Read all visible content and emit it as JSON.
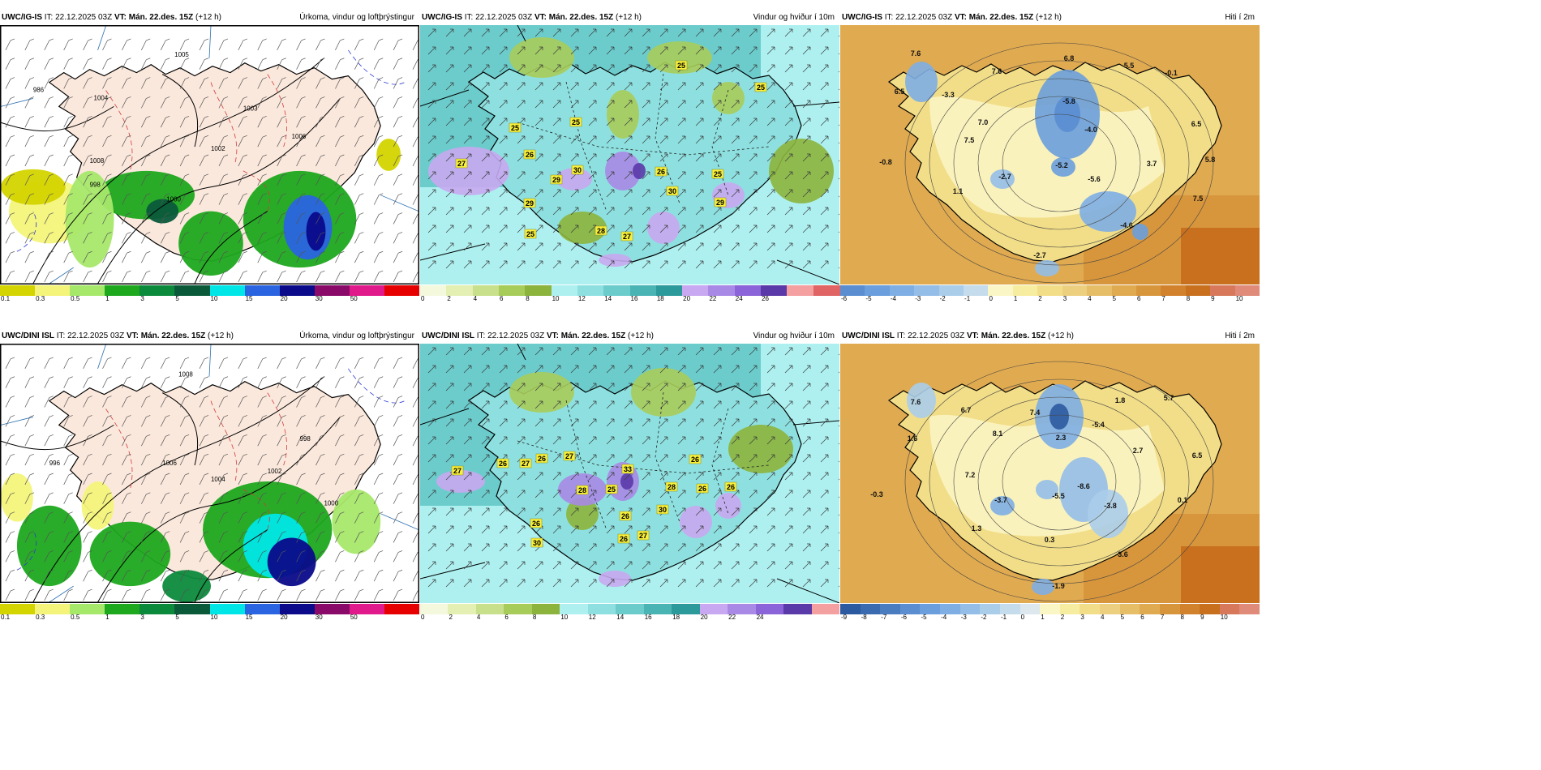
{
  "panels": [
    {
      "id": "ig-precip",
      "model": "UWC/IG-IS",
      "it_label": "IT:",
      "it": "22.12.2025 03Z",
      "vt_label": "VT:",
      "vt": "Mán. 22.des. 15Z",
      "lead": "(+12 h)",
      "title": "Úrkoma, vindur og loftþrýstingur",
      "colorbar": {
        "ticks": [
          "0.1",
          "0.3",
          "0.5",
          "1",
          "3",
          "5",
          "10",
          "15",
          "20",
          "30",
          "50"
        ],
        "colors": [
          "#d4d400",
          "#f4f47a",
          "#a6e86a",
          "#1ea81e",
          "#0c8a3c",
          "#0a5a3a",
          "#00e6e6",
          "#2a64e0",
          "#0a0a8a",
          "#8a0a6a",
          "#e01a8a",
          "#e60000"
        ]
      },
      "contour_labels": [
        "1005",
        "1008",
        "1004",
        "1003",
        "1002",
        "1000",
        "1006",
        "986",
        "998"
      ]
    },
    {
      "id": "ig-wind",
      "model": "UWC/IG-IS",
      "it_label": "IT:",
      "it": "22.12.2025 03Z",
      "vt_label": "VT:",
      "vt": "Mán. 22.des. 15Z",
      "lead": "(+12 h)",
      "title": "Vindur og hviður í 10m",
      "colorbar": {
        "ticks": [
          "0",
          "2",
          "4",
          "6",
          "8",
          "10",
          "12",
          "14",
          "16",
          "18",
          "20",
          "22",
          "24",
          "26"
        ],
        "colors": [
          "#f4f8dc",
          "#e4efb4",
          "#c8e08c",
          "#a8cc5a",
          "#8cb43c",
          "#aef0f0",
          "#8ee0e0",
          "#6ccccc",
          "#4ab4b4",
          "#2c9a9a",
          "#c8a8f0",
          "#a88ae6",
          "#8a64d8",
          "#5a3aa8",
          "#f4a0a0",
          "#e06464"
        ]
      },
      "gust_labels": [
        "25",
        "25",
        "25",
        "25",
        "26",
        "27",
        "29",
        "30",
        "26",
        "25",
        "29",
        "30",
        "29",
        "28",
        "27",
        "25"
      ]
    },
    {
      "id": "ig-temp",
      "model": "UWC/IG-IS",
      "it_label": "IT:",
      "it": "22.12.2025 03Z",
      "vt_label": "VT:",
      "vt": "Mán. 22.des. 15Z",
      "lead": "(+12 h)",
      "title": "Hiti í 2m",
      "colorbar": {
        "ticks": [
          "-6",
          "-5",
          "-4",
          "-3",
          "-2",
          "-1",
          "0",
          "1",
          "2",
          "3",
          "4",
          "5",
          "6",
          "7",
          "8",
          "9",
          "10"
        ],
        "colors": [
          "#5a8ed0",
          "#6a9edc",
          "#7eaee4",
          "#94bee8",
          "#aacdea",
          "#c4dcec",
          "#fbf6c6",
          "#f7eda0",
          "#f2de88",
          "#ecd080",
          "#e6be68",
          "#e0aa50",
          "#d8963c",
          "#d2822c",
          "#c8701e",
          "#d8785a",
          "#e08a7a"
        ]
      },
      "temp_labels": [
        "7.6",
        "6.5",
        "-3.3",
        "7.6",
        "6.8",
        "5.5",
        "-0.1",
        "-5.8",
        "7.0",
        "-4.0",
        "7.5",
        "6.5",
        "-0.8",
        "-2.7",
        "-5.2",
        "3.7",
        "5.8",
        "-5.6",
        "1.1",
        "7.5",
        "-4.6",
        "-2.7"
      ]
    },
    {
      "id": "dini-precip",
      "model": "UWC/DINI ISL",
      "it_label": "IT:",
      "it": "22.12.2025 03Z",
      "vt_label": "VT:",
      "vt": "Mán. 22.des. 15Z",
      "lead": "(+12 h)",
      "title": "Úrkoma, vindur og loftþrýstingur",
      "colorbar": {
        "ticks": [
          "0.1",
          "0.3",
          "0.5",
          "1",
          "3",
          "5",
          "10",
          "15",
          "20",
          "30",
          "50"
        ],
        "colors": [
          "#d4d400",
          "#f4f47a",
          "#a6e86a",
          "#1ea81e",
          "#0c8a3c",
          "#0a5a3a",
          "#00e6e6",
          "#2a64e0",
          "#0a0a8a",
          "#8a0a6a",
          "#e01a8a",
          "#e60000"
        ]
      },
      "contour_labels": [
        "1008",
        "1006",
        "1004",
        "1002",
        "1000",
        "998",
        "996"
      ]
    },
    {
      "id": "dini-wind",
      "model": "UWC/DINI ISL",
      "it_label": "IT:",
      "it": "22.12.2025 03Z",
      "vt_label": "VT:",
      "vt": "Mán. 22.des. 15Z",
      "lead": "(+12 h)",
      "title": "Vindur og hviður í 10m",
      "colorbar": {
        "ticks": [
          "0",
          "2",
          "4",
          "6",
          "8",
          "10",
          "12",
          "14",
          "16",
          "18",
          "20",
          "22",
          "24"
        ],
        "colors": [
          "#f4f8dc",
          "#e4efb4",
          "#c8e08c",
          "#a8cc5a",
          "#8cb43c",
          "#aef0f0",
          "#8ee0e0",
          "#6ccccc",
          "#4ab4b4",
          "#2c9a9a",
          "#c8a8f0",
          "#a88ae6",
          "#8a64d8",
          "#5a3aa8",
          "#f4a0a0"
        ]
      },
      "gust_labels": [
        "27",
        "26",
        "27",
        "26",
        "27",
        "33",
        "28",
        "25",
        "26",
        "28",
        "26",
        "30",
        "26",
        "26",
        "26",
        "30",
        "26",
        "27"
      ]
    },
    {
      "id": "dini-temp",
      "model": "UWC/DINI ISL",
      "it_label": "IT:",
      "it": "22.12.2025 03Z",
      "vt_label": "VT:",
      "vt": "Mán. 22.des. 15Z",
      "lead": "(+12 h)",
      "title": "Hiti í 2m",
      "colorbar": {
        "ticks": [
          "-9",
          "-8",
          "-7",
          "-6",
          "-5",
          "-4",
          "-3",
          "-2",
          "-1",
          "0",
          "1",
          "2",
          "3",
          "4",
          "5",
          "6",
          "7",
          "8",
          "9",
          "10"
        ],
        "colors": [
          "#2c5aa0",
          "#3a6ab0",
          "#4a7cc0",
          "#5a8ed0",
          "#6a9edc",
          "#7eaee4",
          "#94bee8",
          "#aacdea",
          "#c4dcec",
          "#dce8ee",
          "#fbf6c6",
          "#f7eda0",
          "#f2de88",
          "#ecd080",
          "#e6be68",
          "#e0aa50",
          "#d8963c",
          "#d2822c",
          "#c8701e",
          "#d8785a",
          "#e08a7a"
        ]
      },
      "temp_labels": [
        "7.6",
        "6.7",
        "1.8",
        "5.7",
        "7.4",
        "-5.4",
        "1.6",
        "8.1",
        "2.3",
        "2.7",
        "6.5",
        "7.2",
        "-8.6",
        "-0.3",
        "-3.7",
        "-5.5",
        "-3.8",
        "0.1",
        "1.3",
        "0.3",
        "-3.6",
        "-1.9"
      ]
    }
  ]
}
